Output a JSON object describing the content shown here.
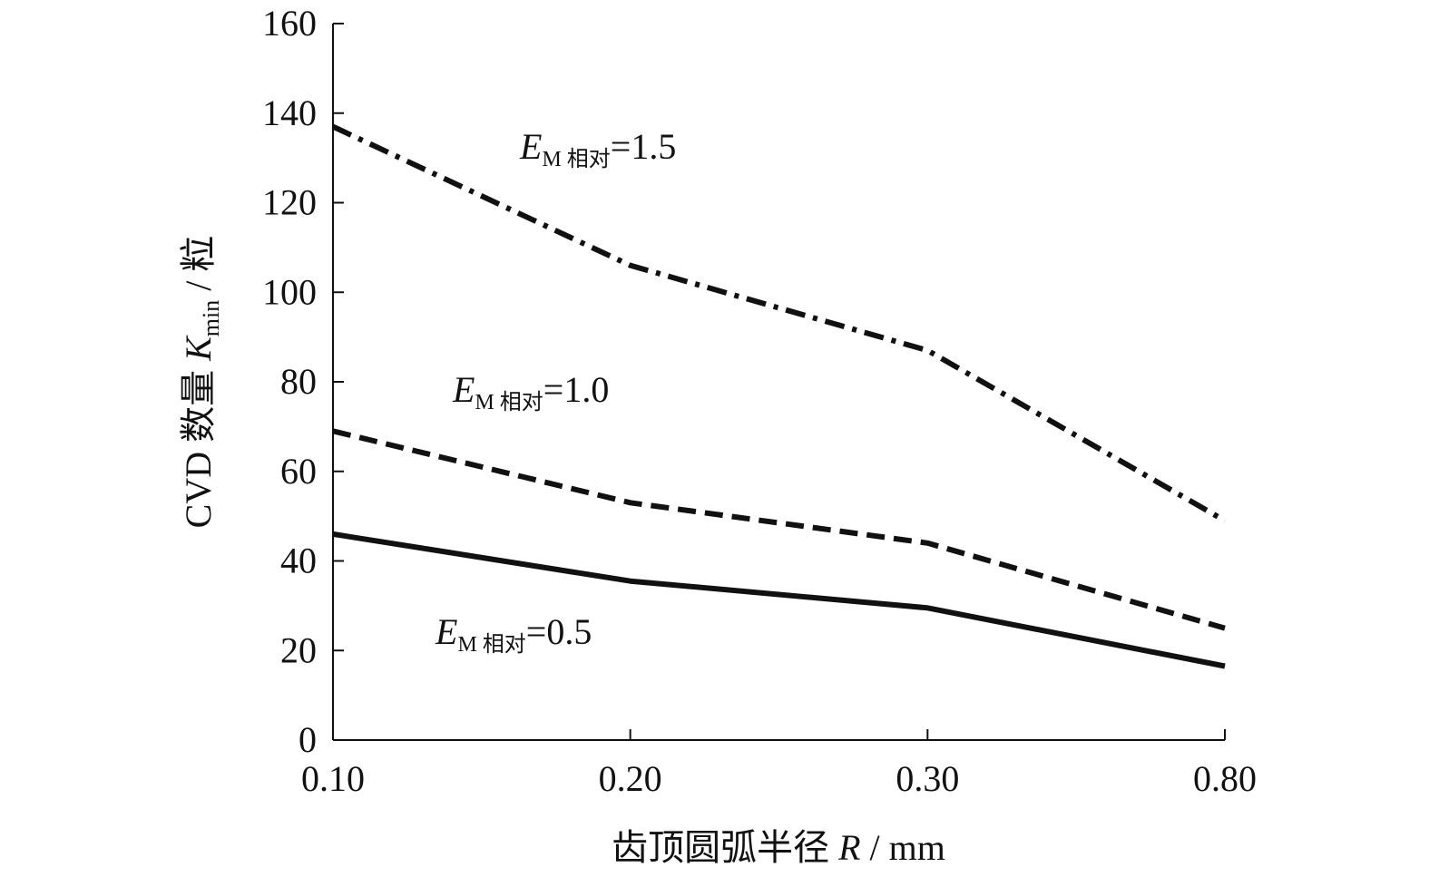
{
  "chart_data": {
    "type": "line",
    "categories": [
      "0.10",
      "0.20",
      "0.30",
      "0.80"
    ],
    "xlabel": {
      "main": "齿顶圆弧半径 ",
      "var": "R",
      "unit": " / mm"
    },
    "ylabel": {
      "main": "CVD 数量 ",
      "var": "K",
      "sub": "min",
      "unit": " / 粒"
    },
    "ylim": [
      0,
      160
    ],
    "yticks": [
      "0",
      "20",
      "40",
      "60",
      "80",
      "100",
      "120",
      "140",
      "160"
    ],
    "grid": false,
    "series": [
      {
        "label": {
          "var": "E",
          "sub": "M 相对",
          "value": "=1.5"
        },
        "values": [
          137,
          106,
          87,
          49
        ],
        "style": "dash-dot",
        "color": "#111111"
      },
      {
        "label": {
          "var": "E",
          "sub": "M 相对",
          "value": "=1.0"
        },
        "values": [
          69,
          53,
          44,
          25
        ],
        "style": "dashed",
        "color": "#111111"
      },
      {
        "label": {
          "var": "E",
          "sub": "M 相对",
          "value": "=0.5"
        },
        "values": [
          46,
          35.5,
          29.5,
          16.5
        ],
        "style": "solid",
        "color": "#111111"
      }
    ]
  }
}
